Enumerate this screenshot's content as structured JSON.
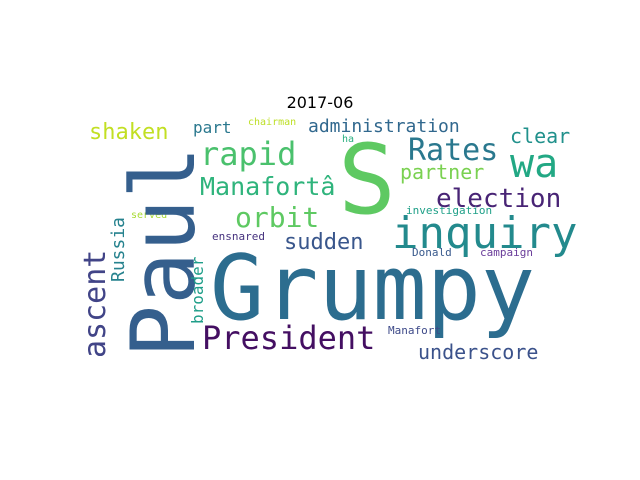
{
  "title": "2017-06",
  "words": {
    "grumpy": "Grumpy",
    "paul": "Paul",
    "s": "S",
    "inquiry": "inquiry",
    "president": "President",
    "wa": "wa",
    "rates": "Rates",
    "rapid": "rapid",
    "manafort_a": "Manafortâ",
    "orbit": "orbit",
    "election": "election",
    "ascent": "ascent",
    "sudden": "sudden",
    "underscore": "underscore",
    "partner": "partner",
    "administration": "administration",
    "shaken": "shaken",
    "clear": "clear",
    "russia": "Russia",
    "part": "part",
    "broader": "broader",
    "chairman": "chairman",
    "ha": "ha",
    "investigation": "investigation",
    "served": "served",
    "ensnared": "ensnared",
    "donald": "Donald",
    "campaign": "campaign",
    "manafort": "Manafort"
  }
}
